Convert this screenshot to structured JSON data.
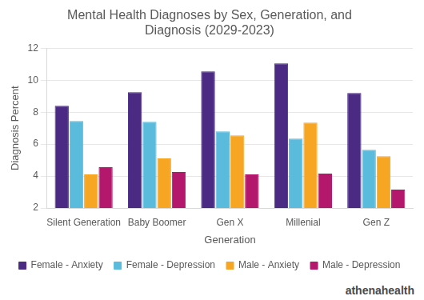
{
  "chart_data": {
    "type": "bar",
    "title": "Mental Health Diagnoses by Sex, Generation, and Diagnosis (2029-2023)",
    "x_label": "Generation",
    "y_label": "Diagnosis Percent",
    "categories": [
      "Silent Generation",
      "Baby Boomer",
      "Gen X",
      "Millenial",
      "Gen Z"
    ],
    "series": [
      {
        "name": "Female - Anxiety",
        "color": "#4b2a84",
        "values": [
          8.4,
          9.25,
          10.55,
          11.05,
          9.2
        ]
      },
      {
        "name": "Female - Depression",
        "color": "#5bbbdc",
        "values": [
          7.45,
          7.4,
          6.8,
          6.35,
          5.65
        ]
      },
      {
        "name": "Male - Anxiety",
        "color": "#f7a624",
        "values": [
          4.1,
          5.1,
          6.55,
          7.35,
          5.25
        ]
      },
      {
        "name": "Male - Depression",
        "color": "#b3186d",
        "values": [
          4.55,
          4.25,
          4.1,
          4.15,
          3.15
        ]
      }
    ],
    "ylim": [
      2,
      12
    ],
    "yticks": [
      2,
      4,
      6,
      8,
      10,
      12
    ],
    "grid": true,
    "legend": "bottom",
    "annotations": [
      "athenahealth"
    ]
  }
}
